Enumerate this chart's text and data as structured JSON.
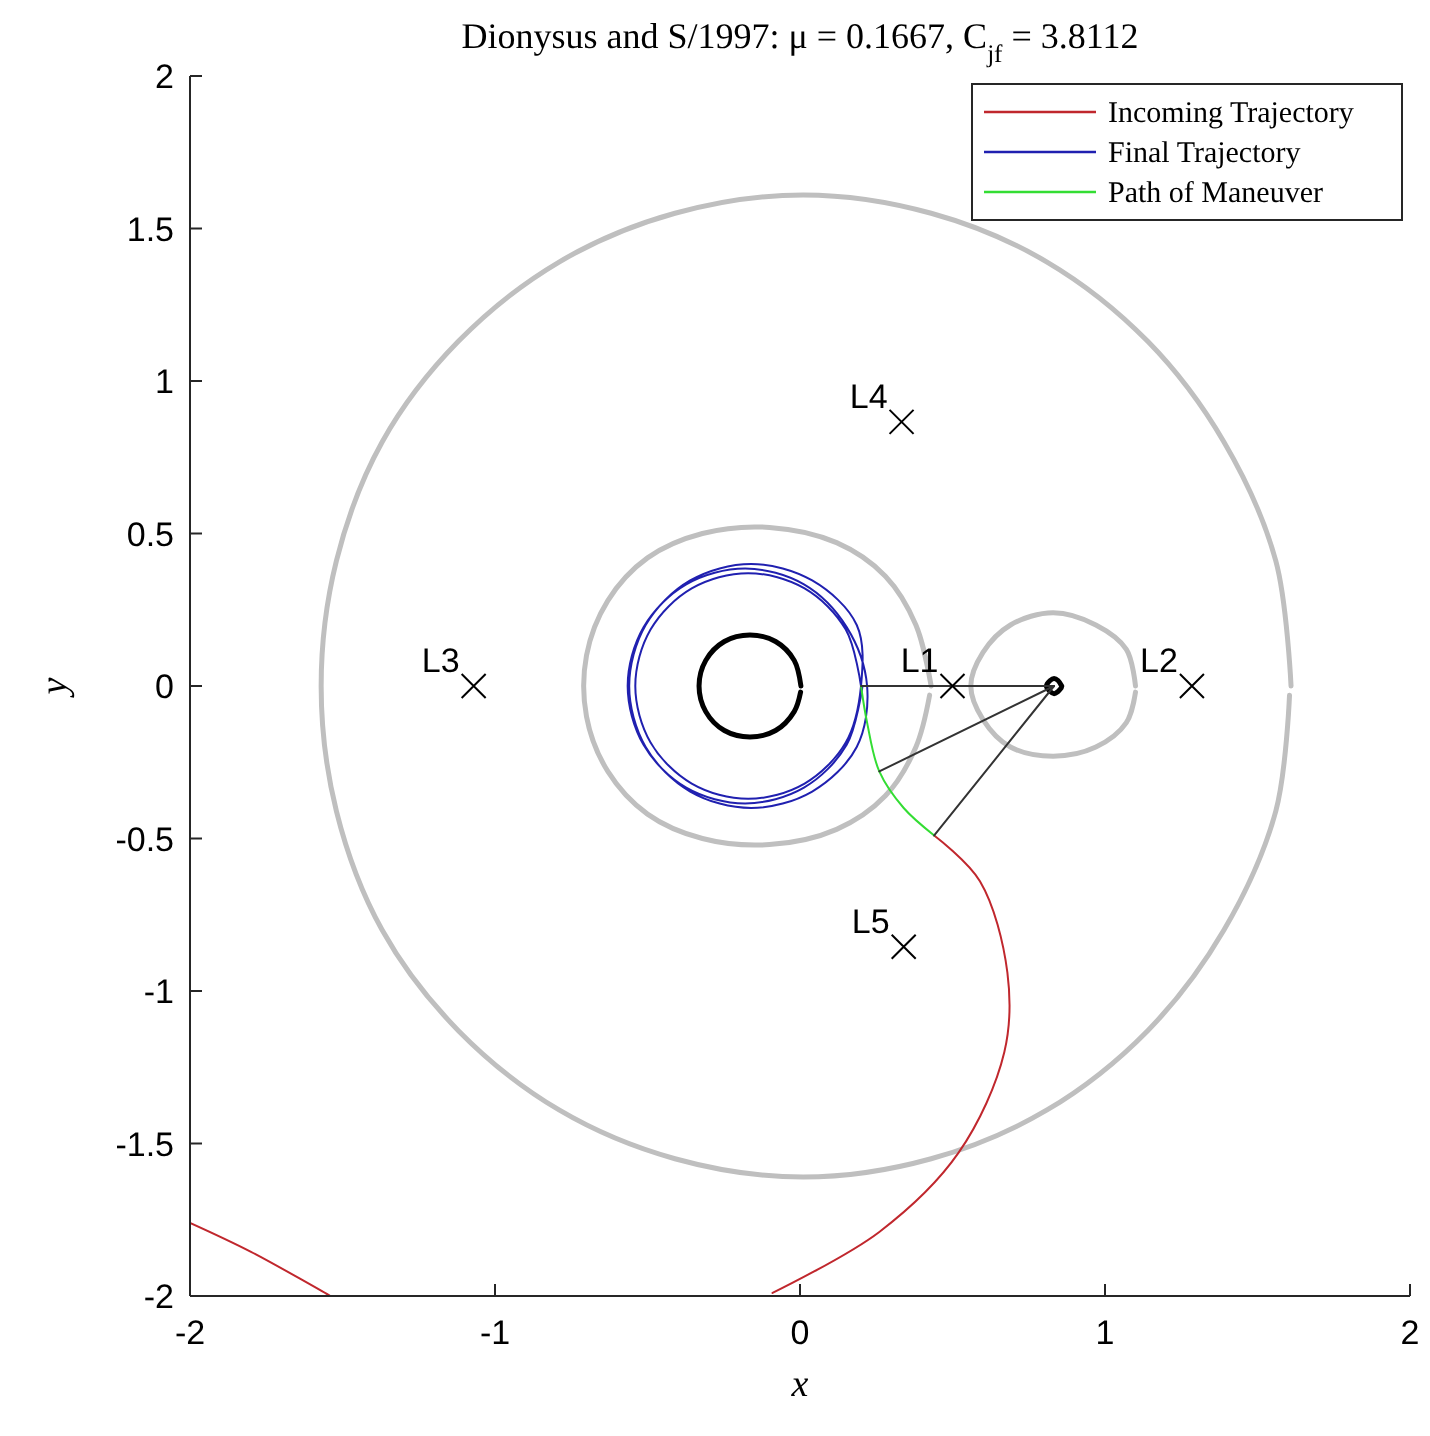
{
  "chart_data": {
    "type": "line",
    "title": "Dionysus and S/1997: μ = 0.1667, C$_{jf}$ = 3.8112",
    "xlabel": "x",
    "ylabel": "y",
    "xlim": [
      -2,
      2
    ],
    "ylim": [
      -2,
      2
    ],
    "xticks": [
      -2,
      -1,
      0,
      1,
      2
    ],
    "yticks": [
      -2,
      -1.5,
      -1,
      -0.5,
      0,
      0.5,
      1,
      1.5,
      2
    ],
    "grid": false,
    "legend": "top right",
    "series": [
      {
        "color": "#bfbfbf",
        "x": [
          1.61,
          1.56,
          1.39,
          1.14,
          0.81,
          0.43,
          0.01,
          -0.41,
          -0.79,
          -1.12,
          -1.37,
          -1.52,
          -1.57,
          -1.52,
          -1.37,
          -1.12,
          -0.79,
          -0.41,
          0.01,
          0.43,
          0.81,
          1.14,
          1.39,
          1.56,
          1.605
        ],
        "values": [
          0,
          0.41,
          0.8,
          1.13,
          1.39,
          1.55,
          1.61,
          1.55,
          1.39,
          1.13,
          0.8,
          0.41,
          0,
          -0.41,
          -0.8,
          -1.13,
          -1.39,
          -1.55,
          -1.61,
          -1.55,
          -1.39,
          -1.13,
          -0.8,
          -0.41,
          -0.03
        ]
      },
      {
        "color": "#bfbfbf",
        "x": [
          0.43,
          0.38,
          0.28,
          0.12,
          -0.1,
          -0.32,
          -0.5,
          -0.63,
          -0.7,
          -0.7,
          -0.63,
          -0.5,
          -0.32,
          -0.1,
          0.12,
          0.28,
          0.38,
          0.425
        ],
        "values": [
          0,
          0.2,
          0.36,
          0.47,
          0.52,
          0.5,
          0.42,
          0.28,
          0.1,
          -0.1,
          -0.28,
          -0.42,
          -0.5,
          -0.52,
          -0.47,
          -0.36,
          -0.2,
          -0.03
        ]
      },
      {
        "color": "#bfbfbf",
        "x": [
          1.1,
          1.07,
          0.97,
          0.83,
          0.69,
          0.6,
          0.56,
          0.6,
          0.69,
          0.83,
          0.97,
          1.07,
          1.1
        ],
        "values": [
          0,
          0.12,
          0.2,
          0.24,
          0.2,
          0.11,
          0,
          -0.11,
          -0.2,
          -0.23,
          -0.2,
          -0.12,
          -0.02
        ]
      },
      {
        "color": "#000000",
        "x": [
          0.003,
          -0.019,
          -0.08,
          -0.164,
          -0.248,
          -0.309,
          -0.331,
          -0.309,
          -0.248,
          -0.164,
          -0.08,
          -0.019,
          0.002
        ],
        "values": [
          0,
          0.084,
          0.146,
          0.167,
          0.146,
          0.084,
          0,
          -0.084,
          -0.146,
          -0.167,
          -0.146,
          -0.084,
          -0.02
        ]
      },
      {
        "color": "#000000",
        "x": [
          0.858,
          0.846,
          0.833,
          0.82,
          0.808,
          0.82,
          0.833,
          0.846,
          0.857
        ],
        "values": [
          0,
          0.018,
          0.025,
          0.018,
          0,
          -0.018,
          -0.025,
          -0.018,
          -0.006
        ]
      },
      {
        "name": "Incoming Trajectory",
        "color": "#c0272d",
        "x": [
          -2,
          -1.8,
          -1.54,
          null,
          -0.09,
          0.26,
          0.52,
          0.67,
          0.68,
          0.59,
          0.44
        ],
        "values": [
          -1.76,
          -1.855,
          -2,
          null,
          -1.99,
          -1.79,
          -1.53,
          -1.2,
          -0.94,
          -0.64,
          -0.49
        ]
      },
      {
        "name": "Final Trajectory",
        "color": "#2020b0",
        "x": [
          0.2,
          0.15,
          0.015,
          -0.17,
          -0.355,
          -0.49,
          -0.54,
          -0.49,
          -0.355,
          -0.17,
          0.015,
          0.15,
          0.2,
          0.186,
          0.04,
          -0.16,
          -0.36,
          -0.506,
          -0.56,
          -0.506,
          -0.36,
          -0.16,
          0.04,
          0.186,
          0.22,
          0.153,
          0.013,
          -0.18,
          -0.373,
          -0.513,
          -0.565,
          -0.513,
          -0.373,
          -0.18,
          0.013,
          0.153,
          0.205
        ],
        "values": [
          0,
          0.185,
          0.32,
          0.37,
          0.32,
          0.185,
          0,
          -0.185,
          -0.32,
          -0.37,
          -0.32,
          -0.185,
          0,
          0.2,
          0.346,
          0.4,
          0.346,
          0.2,
          0,
          -0.2,
          -0.346,
          -0.4,
          -0.346,
          -0.2,
          0,
          0.193,
          0.333,
          0.385,
          0.333,
          0.193,
          0,
          -0.193,
          -0.333,
          -0.385,
          -0.333,
          -0.193,
          0
        ]
      },
      {
        "name": "Path of Maneuver",
        "color": "#33dd33",
        "x": [
          0.2,
          0.22,
          0.26,
          0.34,
          0.44
        ],
        "values": [
          0,
          -0.12,
          -0.28,
          -0.4,
          -0.49
        ]
      },
      {
        "color": "#333333",
        "x": [
          0.833,
          0.2
        ],
        "values": [
          0,
          0
        ]
      },
      {
        "color": "#333333",
        "x": [
          0.833,
          0.26
        ],
        "values": [
          0,
          -0.28
        ]
      },
      {
        "color": "#333333",
        "x": [
          0.833,
          0.44
        ],
        "values": [
          0,
          -0.49
        ]
      },
      {
        "type": "scatter",
        "color": "#000000",
        "marker": "cross",
        "x": [
          0.5,
          1.285,
          -1.07,
          0.333,
          0.34
        ],
        "values": [
          0,
          0,
          0,
          0.866,
          -0.855
        ]
      }
    ],
    "annotations": [
      {
        "text": "L1",
        "x": 0.5,
        "y": 0
      },
      {
        "text": "L2",
        "x": 1.285,
        "y": 0
      },
      {
        "text": "L3",
        "x": -1.07,
        "y": 0
      },
      {
        "text": "L4",
        "x": 0.333,
        "y": 0.866
      },
      {
        "text": "L5",
        "x": 0.34,
        "y": -0.855
      }
    ]
  }
}
